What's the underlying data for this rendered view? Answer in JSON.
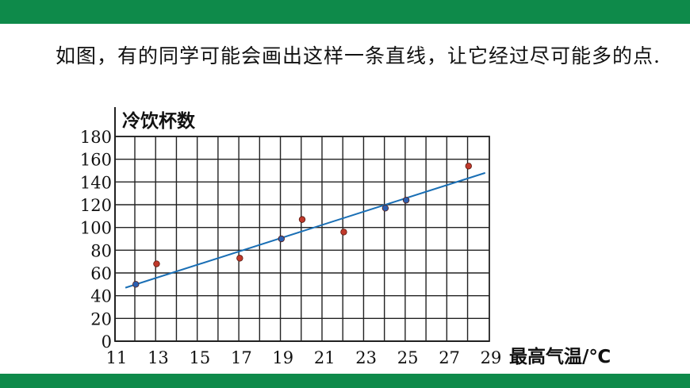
{
  "caption": "如图，有的同学可能会画出这样一条直线，让它经过尽可能多的点.",
  "colors": {
    "banner": "#0e8a4a",
    "point": "#c0392b",
    "point_on_line": "#2b5fb0",
    "line": "#1a6fb5",
    "grid": "#222222"
  },
  "chart_data": {
    "type": "scatter",
    "ylabel": "冷饮杯数",
    "xlabel": "最高气温/℃",
    "xlim": [
      11,
      29
    ],
    "ylim": [
      0,
      180
    ],
    "x_ticks": [
      11,
      13,
      15,
      17,
      19,
      21,
      23,
      25,
      27,
      29
    ],
    "y_ticks": [
      0,
      20,
      40,
      60,
      80,
      100,
      120,
      140,
      160,
      180
    ],
    "x_tick_labels": [
      "11",
      "13",
      "15",
      "17",
      "19",
      "21",
      "23",
      "25",
      "27",
      "29"
    ],
    "y_tick_labels": [
      "0",
      "20",
      "40",
      "60",
      "80",
      "100",
      "120",
      "140",
      "160",
      "180"
    ],
    "grid": true,
    "points": [
      {
        "x": 12,
        "y": 50
      },
      {
        "x": 13,
        "y": 68
      },
      {
        "x": 17,
        "y": 73
      },
      {
        "x": 19,
        "y": 90
      },
      {
        "x": 20,
        "y": 107
      },
      {
        "x": 22,
        "y": 96
      },
      {
        "x": 24,
        "y": 117
      },
      {
        "x": 25,
        "y": 124
      },
      {
        "x": 28,
        "y": 154
      }
    ],
    "fit_line": {
      "x": [
        11.5,
        28.8
      ],
      "y": [
        47,
        148
      ]
    }
  }
}
